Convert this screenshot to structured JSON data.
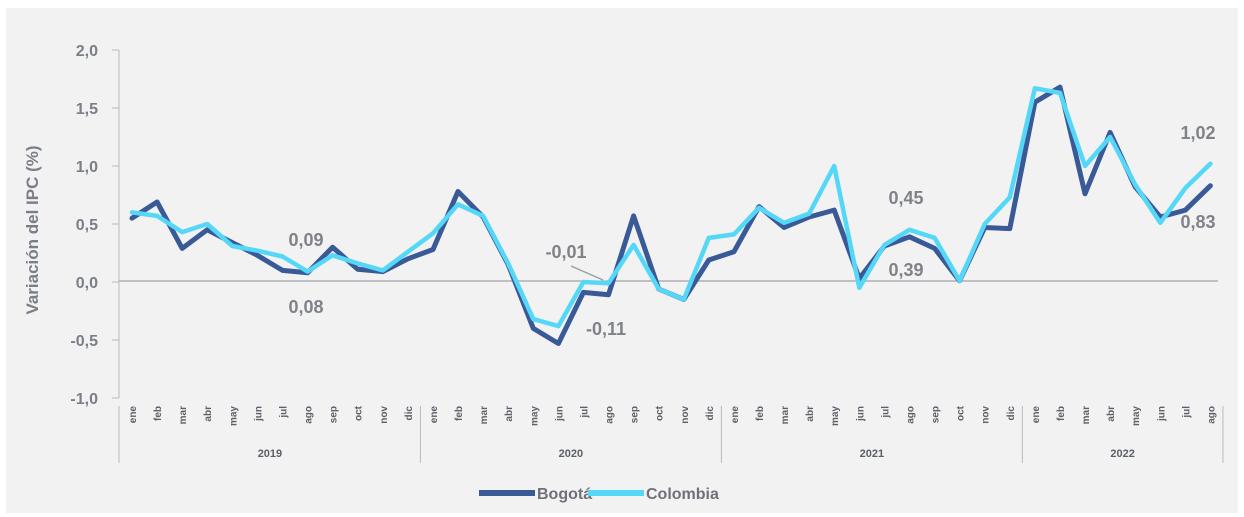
{
  "chart_data": {
    "type": "line",
    "ylabel": "Variación del IPC (%)",
    "ylim": [
      -1.0,
      2.0
    ],
    "yticks": [
      "2,0",
      "1,5",
      "1,0",
      "0,5",
      "0,0",
      "-0,5",
      "-1,0"
    ],
    "ytick_values": [
      2.0,
      1.5,
      1.0,
      0.5,
      0.0,
      -0.5,
      -1.0
    ],
    "years": [
      "2019",
      "2020",
      "2021",
      "2022"
    ],
    "months_per_year": [
      "ene",
      "feb",
      "mar",
      "abr",
      "may",
      "jun",
      "jul",
      "ago",
      "sep",
      "oct",
      "nov",
      "dic"
    ],
    "months_last_year": [
      "ene",
      "feb",
      "mar",
      "abr",
      "may",
      "jun",
      "jul",
      "ago"
    ],
    "series": [
      {
        "name": "Bogotá",
        "color": "#3a5a97",
        "values": [
          0.55,
          0.69,
          0.29,
          0.45,
          0.34,
          0.23,
          0.1,
          0.08,
          0.3,
          0.11,
          0.09,
          0.2,
          0.28,
          0.78,
          0.56,
          0.15,
          -0.4,
          -0.53,
          -0.09,
          -0.11,
          0.57,
          -0.06,
          -0.15,
          0.19,
          0.26,
          0.65,
          0.47,
          0.56,
          0.62,
          0.03,
          0.31,
          0.39,
          0.29,
          0.01,
          0.47,
          0.46,
          1.55,
          1.68,
          0.76,
          1.29,
          0.82,
          0.56,
          0.62,
          0.83
        ]
      },
      {
        "name": "Colombia",
        "color": "#55d8f8",
        "values": [
          0.6,
          0.57,
          0.43,
          0.5,
          0.31,
          0.27,
          0.22,
          0.09,
          0.23,
          0.16,
          0.1,
          0.26,
          0.42,
          0.67,
          0.57,
          0.16,
          -0.32,
          -0.38,
          0.0,
          -0.01,
          0.32,
          -0.06,
          -0.15,
          0.38,
          0.41,
          0.64,
          0.51,
          0.59,
          1.0,
          -0.05,
          0.32,
          0.45,
          0.38,
          0.01,
          0.5,
          0.73,
          1.67,
          1.63,
          1.0,
          1.25,
          0.84,
          0.51,
          0.81,
          1.02
        ]
      }
    ],
    "annotations": [
      "0,09",
      "0,08",
      "-0,01",
      "-0,11",
      "0,45",
      "0,39",
      "1,02",
      "0,83"
    ],
    "legend_position": "bottom"
  }
}
